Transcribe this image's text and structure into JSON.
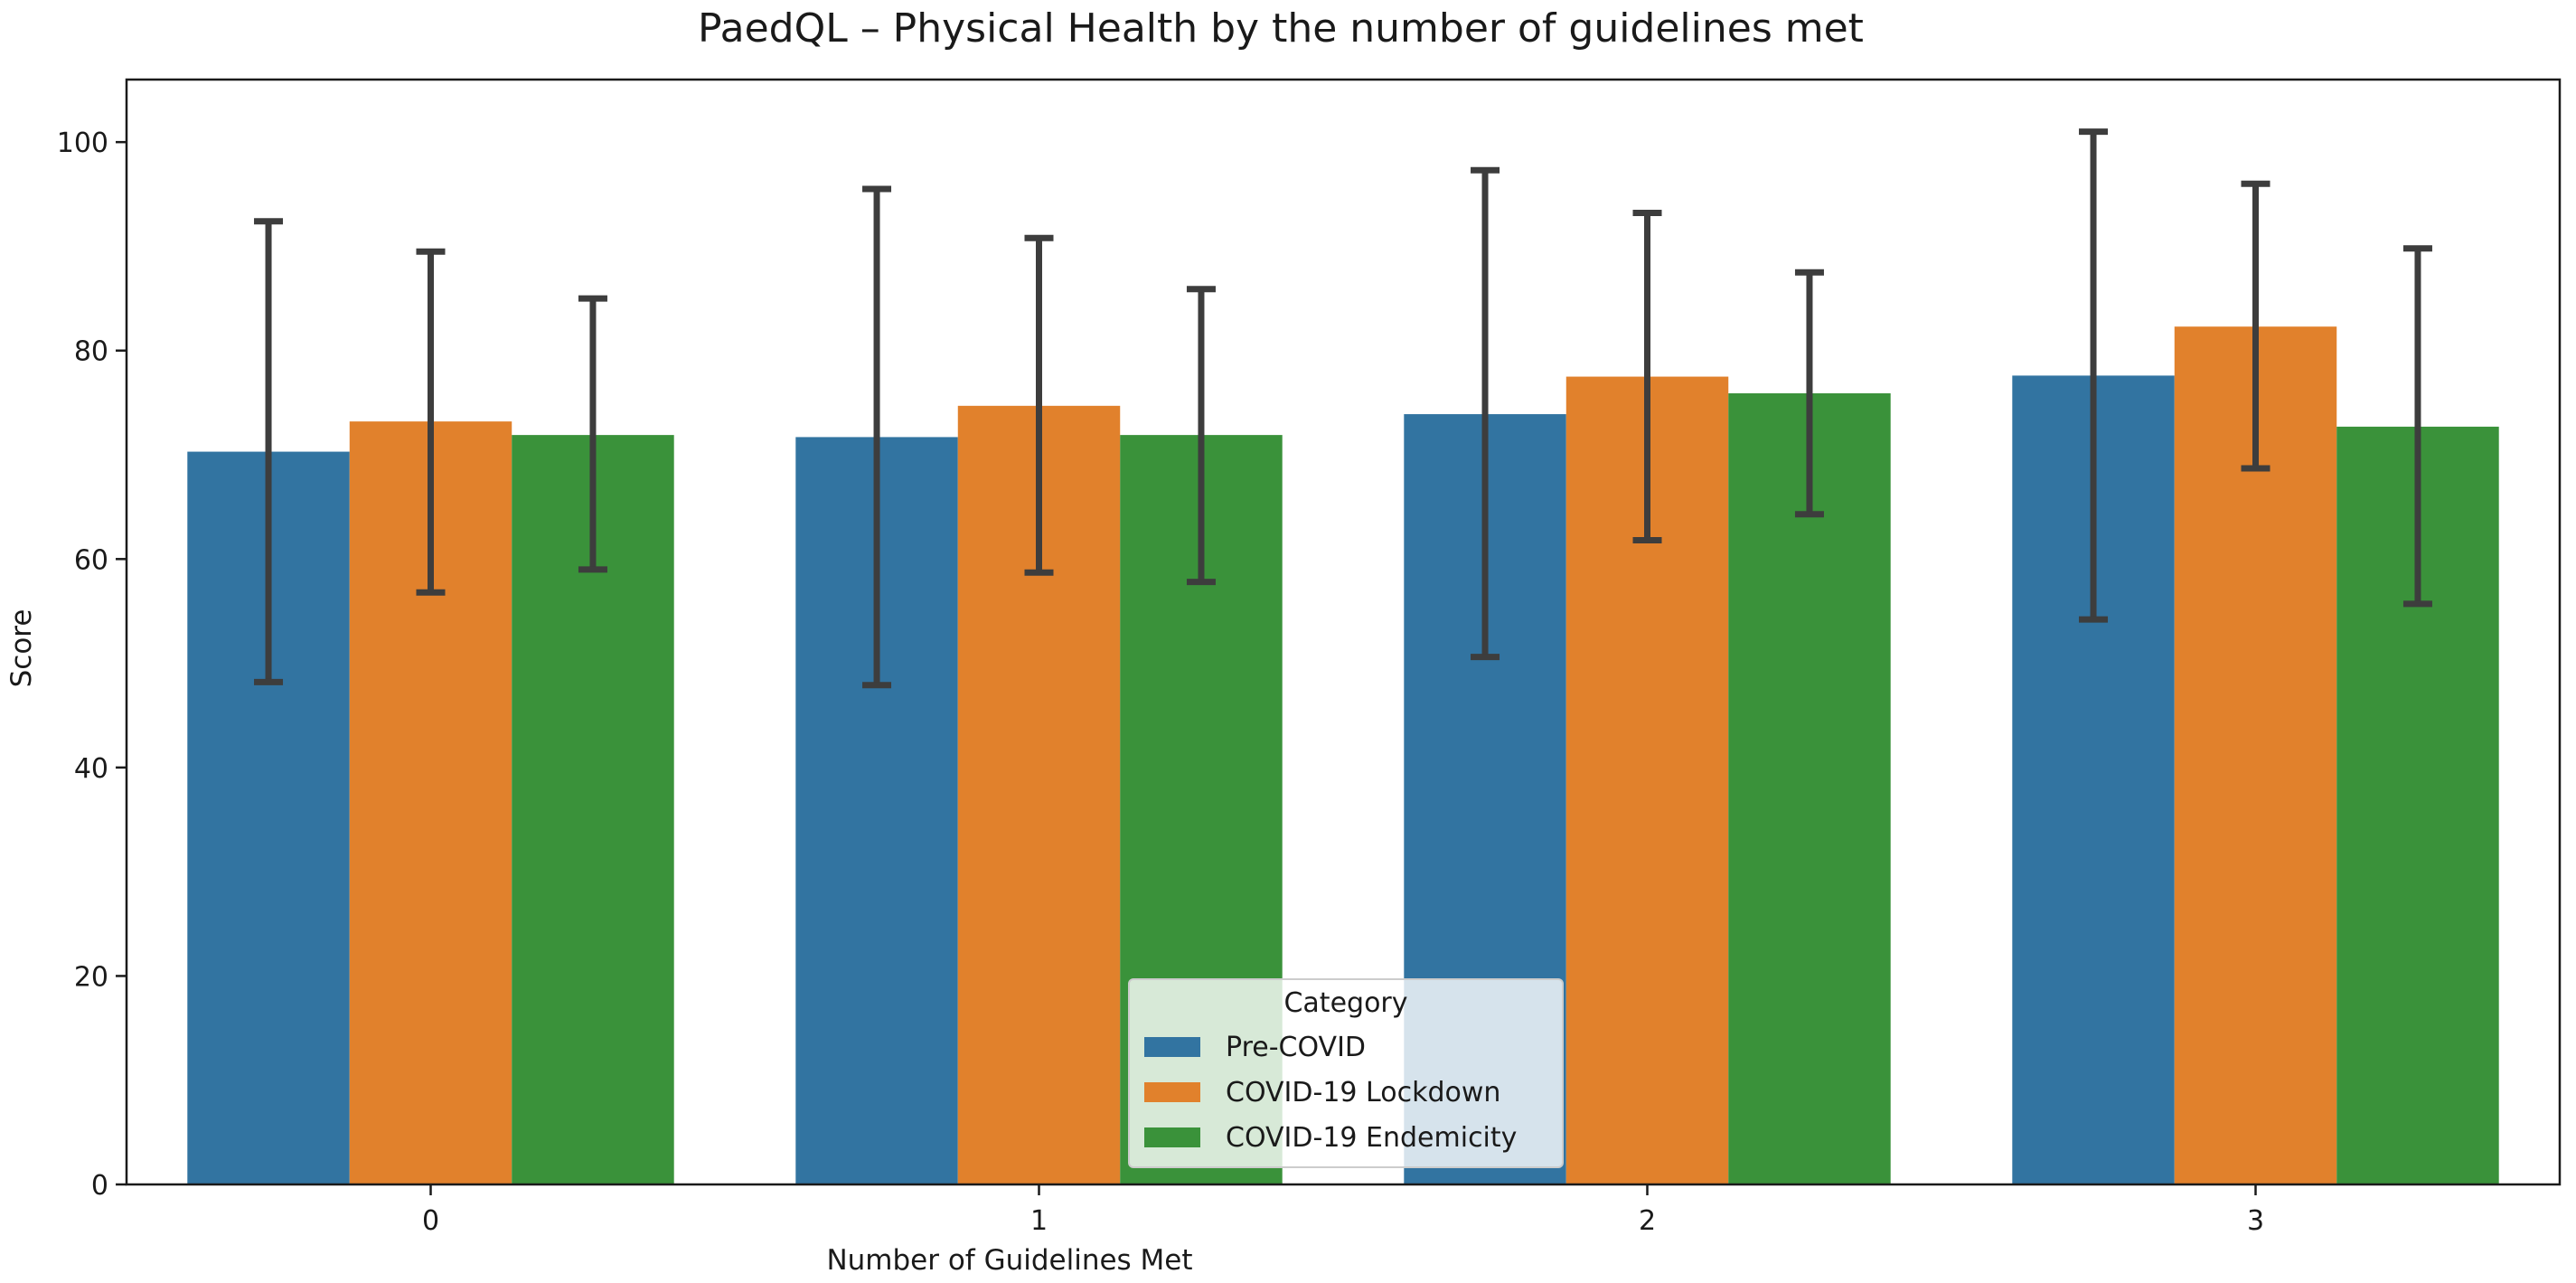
{
  "chart_data": {
    "type": "bar",
    "title": "PaedQL – Physical Health by the number of guidelines met",
    "xlabel": "Number of Guidelines Met",
    "ylabel": "Score",
    "ylim": [
      0,
      106
    ],
    "yticks": [
      0,
      20,
      40,
      60,
      80,
      100
    ],
    "categories": [
      "0",
      "1",
      "2",
      "3"
    ],
    "series": [
      {
        "name": "Pre-COVID",
        "color": "#3274a1",
        "values": [
          70.3,
          71.7,
          73.9,
          77.6
        ],
        "error_low": [
          48.2,
          47.9,
          50.6,
          54.2
        ],
        "error_high": [
          92.4,
          95.5,
          97.3,
          101.0
        ]
      },
      {
        "name": "COVID-19 Lockdown",
        "color": "#e1812c",
        "values": [
          73.2,
          74.7,
          77.5,
          82.3
        ],
        "error_low": [
          56.8,
          58.7,
          61.8,
          68.7
        ],
        "error_high": [
          89.5,
          90.8,
          93.2,
          96.0
        ]
      },
      {
        "name": "COVID-19 Endemicity",
        "color": "#3a923a",
        "values": [
          71.9,
          71.9,
          75.9,
          72.7
        ],
        "error_low": [
          59.0,
          57.8,
          64.3,
          55.7
        ],
        "error_high": [
          85.0,
          85.9,
          87.5,
          89.8
        ]
      }
    ],
    "legend": {
      "title": "Category",
      "position": "lower-center"
    },
    "grid": false
  }
}
